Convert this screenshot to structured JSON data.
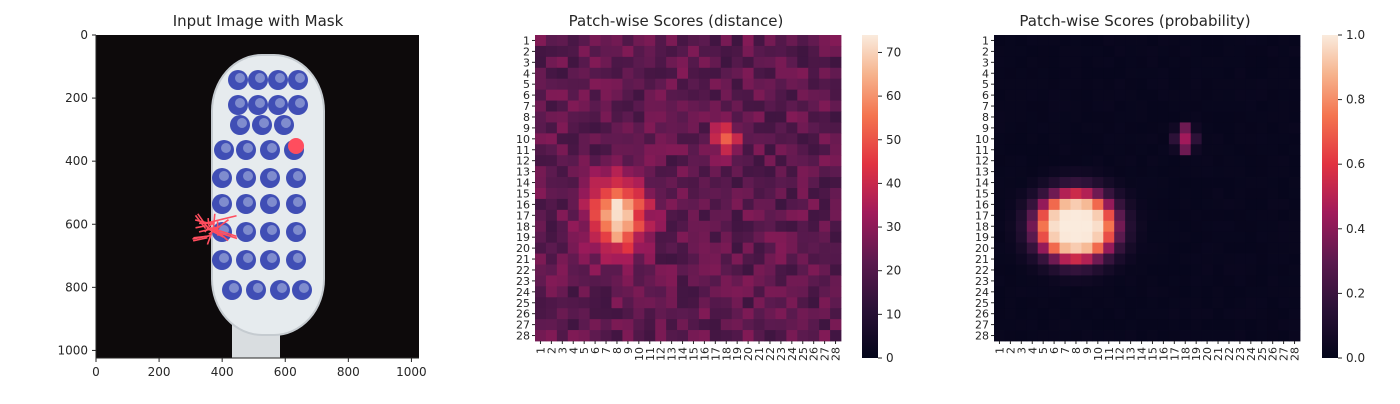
{
  "chart_data": [
    {
      "type": "image",
      "title": "Input Image with Mask",
      "xlim": [
        0,
        1024
      ],
      "ylim": [
        1024,
        0
      ],
      "xticks": [
        0,
        200,
        400,
        600,
        800,
        1000
      ],
      "yticks": [
        0,
        200,
        400,
        600,
        800,
        1000
      ],
      "mask_color": "#ff4d5e",
      "overlay_color": "#2233aa"
    },
    {
      "type": "heatmap",
      "title": "Patch-wise Scores (distance)",
      "grid": [
        28,
        28
      ],
      "labels": [
        "1",
        "2",
        "3",
        "4",
        "5",
        "6",
        "7",
        "8",
        "9",
        "10",
        "11",
        "12",
        "13",
        "14",
        "15",
        "16",
        "17",
        "18",
        "19",
        "20",
        "21",
        "22",
        "23",
        "24",
        "25",
        "26",
        "27",
        "28"
      ],
      "colorbar": {
        "min": 0,
        "max": 74,
        "ticks": [
          0,
          10,
          20,
          30,
          40,
          50,
          60,
          70
        ]
      },
      "base": 22,
      "hotspots": [
        {
          "row": 17,
          "col": 8,
          "value": 74,
          "radius_rows": 3.0,
          "radius_cols": 2.4
        },
        {
          "row": 10,
          "col": 18,
          "value": 46,
          "radius_rows": 1.4,
          "radius_cols": 1.3
        }
      ]
    },
    {
      "type": "heatmap",
      "title": "Patch-wise Scores (probability)",
      "grid": [
        28,
        28
      ],
      "labels": [
        "1",
        "2",
        "3",
        "4",
        "5",
        "6",
        "7",
        "8",
        "9",
        "10",
        "11",
        "12",
        "13",
        "14",
        "15",
        "16",
        "17",
        "18",
        "19",
        "20",
        "21",
        "22",
        "23",
        "24",
        "25",
        "26",
        "27",
        "28"
      ],
      "colorbar": {
        "min": 0.0,
        "max": 1.0,
        "ticks": [
          "0.0",
          "0.2",
          "0.4",
          "0.6",
          "0.8",
          "1.0"
        ]
      },
      "base": 0.02,
      "hotspots": [
        {
          "row": 18,
          "col": 8,
          "value": 1.0,
          "radius_rows": 3.1,
          "radius_cols": 3.6
        },
        {
          "row": 10,
          "col": 18,
          "value": 0.45,
          "radius_rows": 1.2,
          "radius_cols": 0.9
        }
      ]
    }
  ]
}
